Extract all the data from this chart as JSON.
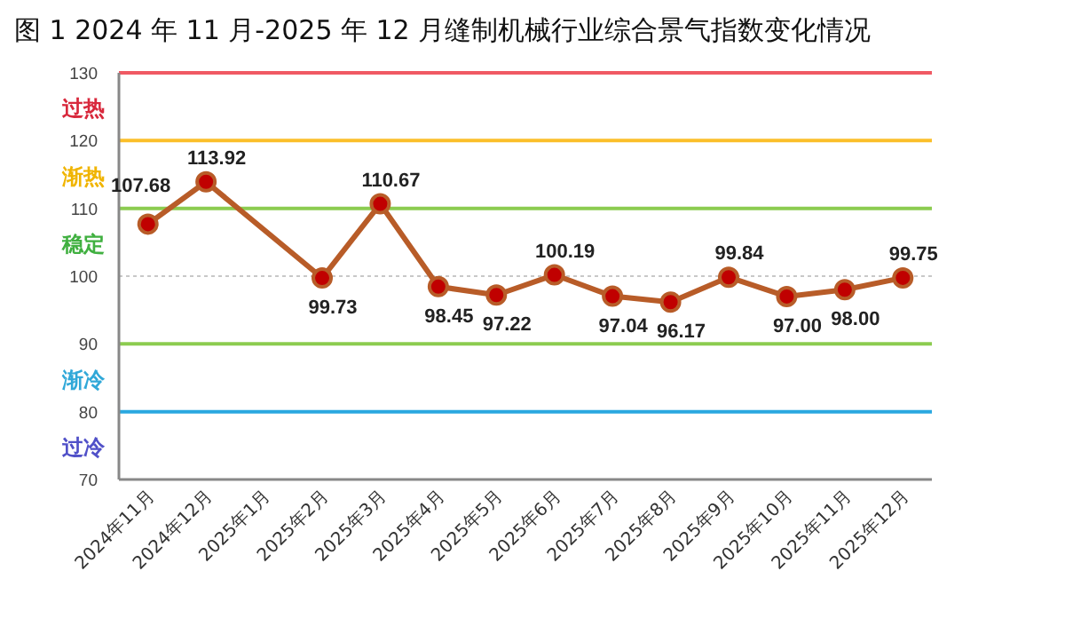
{
  "chart_data": {
    "type": "line",
    "title": "图 1   2024 年 11 月-2025 年 12 月缝制机械行业综合景气指数变化情况",
    "categories": [
      "2024年11月",
      "2024年12月",
      "2025年1月",
      "2025年2月",
      "2025年3月",
      "2025年4月",
      "2025年5月",
      "2025年6月",
      "2025年7月",
      "2025年8月",
      "2025年9月",
      "2025年10月",
      "2025年11月",
      "2025年12月"
    ],
    "series": [
      {
        "color": "#b85c28",
        "values": [
          107.68,
          113.92,
          null,
          99.73,
          110.67,
          98.45,
          97.22,
          100.19,
          97.04,
          96.17,
          99.84,
          97.0,
          98.0,
          99.75
        ],
        "value_labels": [
          "107.68",
          "113.92",
          null,
          "99.73",
          "110.67",
          "98.45",
          "97.22",
          "100.19",
          "97.04",
          "96.17",
          "99.84",
          "97.00",
          "98.00",
          "99.75"
        ]
      }
    ],
    "ylim": [
      70,
      130
    ],
    "yticks": [
      70,
      {
        "value": 75,
        "label": "过冷"
      },
      80,
      {
        "value": 85,
        "label": "渐冷"
      },
      90,
      100,
      {
        "value": 105,
        "label": "稳定"
      },
      110,
      {
        "value": 115,
        "label": "渐热"
      },
      120,
      {
        "value": 125,
        "label": "过热"
      },
      130
    ],
    "ref_lines": [
      {
        "axis": "y",
        "value": 130,
        "color": "#f05a64"
      },
      {
        "axis": "y",
        "value": 120,
        "color": "#fbbf2a"
      },
      {
        "axis": "y",
        "value": 110,
        "color": "#8ccc50"
      },
      {
        "axis": "y",
        "value": 100,
        "color": "#c8c8c8",
        "line_style": "dotted"
      },
      {
        "axis": "y",
        "value": 90,
        "color": "#8ccc50"
      },
      {
        "axis": "y",
        "value": 80,
        "color": "#2aa8e0"
      }
    ],
    "marker": "circle",
    "line_style": "solid",
    "grid": false
  }
}
